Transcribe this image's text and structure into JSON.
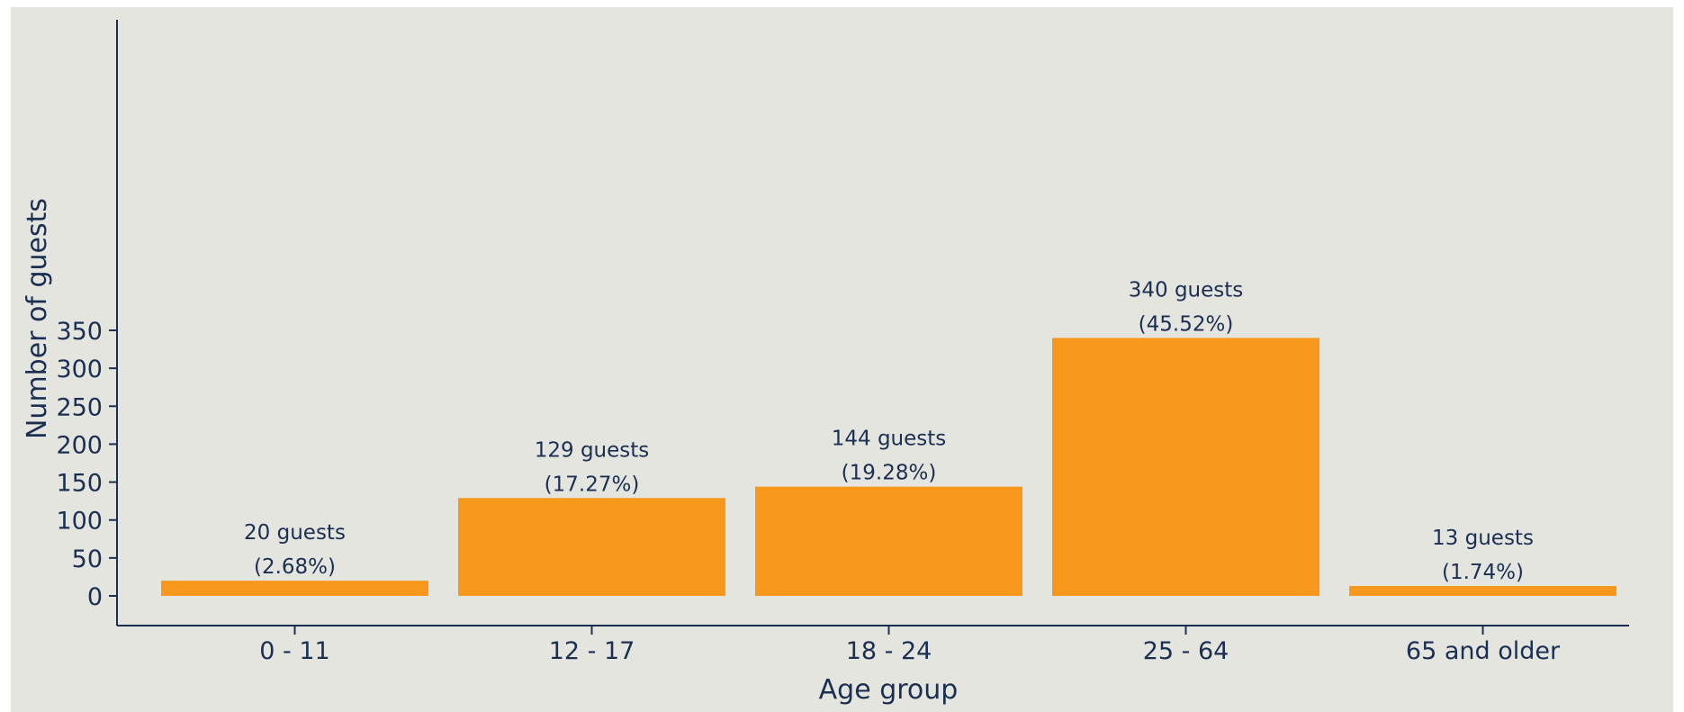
{
  "chart_data": {
    "type": "bar",
    "categories": [
      "0 - 11",
      "12 - 17",
      "18 - 24",
      "25 - 64",
      "65 and older"
    ],
    "values": [
      20,
      129,
      144,
      340,
      13
    ],
    "data_labels": [
      [
        "20 guests",
        "(2.68%)"
      ],
      [
        "129 guests",
        "(17.27%)"
      ],
      [
        "144 guests",
        "(19.28%)"
      ],
      [
        "340 guests",
        "(45.52%)"
      ],
      [
        "13 guests",
        "(1.74%)"
      ]
    ],
    "xlabel": "Age group",
    "ylabel": "Number of guests",
    "ylim": [
      0,
      370
    ],
    "yticks": [
      0,
      50,
      100,
      150,
      200,
      250,
      300,
      350
    ],
    "grid": false,
    "legend": "none",
    "colors": {
      "bar": "#f7981d",
      "axis": "#1b2f52",
      "background": "#e5e5e0"
    }
  }
}
